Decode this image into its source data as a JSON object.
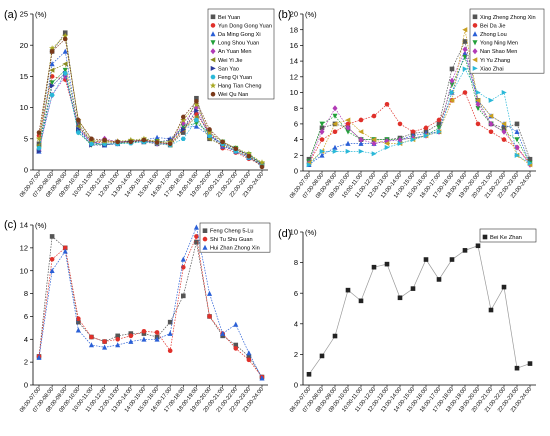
{
  "chart_data": [
    {
      "type": "line",
      "panel_label": "(a)",
      "ylabel": "(%)",
      "ylim": [
        0,
        25
      ],
      "yticks": [
        0,
        5,
        10,
        15,
        20,
        25
      ],
      "yunit": "%",
      "categories": [
        "06:00-07:00",
        "07:00-08:00",
        "08:00-09:00",
        "09:00-10:00",
        "10:00-11:00",
        "11:00-12:00",
        "12:00-13:00",
        "13:00-14:00",
        "14:00-15:00",
        "15:00-16:00",
        "16:00-17:00",
        "17:00-18:00",
        "18:00-19:00",
        "19:00-20:00",
        "20:00-21:00",
        "21:00-22:00",
        "22:00-23:00",
        "23:00-24:00"
      ],
      "legend_position": "top-right",
      "series": [
        {
          "name": "Bei Yuan",
          "color": "#555555",
          "marker": "square",
          "values": [
            4.2,
            19.0,
            22.0,
            7.5,
            4.5,
            4.0,
            4.3,
            4.5,
            4.5,
            4.2,
            4.0,
            6.0,
            11.5,
            5.0,
            4.0,
            3.0,
            2.0,
            1.0
          ]
        },
        {
          "name": "Yun Dong Gong Yuan",
          "color": "#e0302a",
          "marker": "circle",
          "values": [
            5.5,
            15.0,
            14.5,
            7.0,
            4.3,
            4.5,
            4.5,
            4.6,
            4.8,
            4.5,
            4.2,
            6.5,
            9.0,
            6.0,
            3.5,
            2.8,
            1.8,
            0.8
          ]
        },
        {
          "name": "Da Ming Gong Xi",
          "color": "#2a5fd6",
          "marker": "triangle-up",
          "values": [
            3.0,
            17.0,
            19.0,
            6.5,
            4.5,
            4.0,
            4.2,
            4.8,
            4.8,
            5.2,
            5.0,
            6.8,
            7.0,
            5.5,
            3.8,
            3.0,
            2.0,
            0.8
          ]
        },
        {
          "name": "Long Shou Yuan",
          "color": "#22a03a",
          "marker": "triangle-down",
          "values": [
            3.5,
            14.0,
            16.0,
            6.0,
            4.0,
            4.2,
            4.2,
            4.4,
            4.6,
            4.6,
            4.4,
            7.0,
            7.5,
            6.0,
            4.5,
            3.5,
            2.5,
            1.0
          ]
        },
        {
          "name": "An Yuan Men",
          "color": "#b23bb6",
          "marker": "diamond",
          "values": [
            3.2,
            12.0,
            15.0,
            7.0,
            4.2,
            5.0,
            4.5,
            4.6,
            4.8,
            4.2,
            4.3,
            7.5,
            10.0,
            6.0,
            4.0,
            3.0,
            2.0,
            0.8
          ]
        },
        {
          "name": "Wei Yi Jie",
          "color": "#8a8a20",
          "marker": "triangle-left",
          "values": [
            4.0,
            16.0,
            17.0,
            7.0,
            4.6,
            4.5,
            4.4,
            4.6,
            4.9,
            4.6,
            4.0,
            6.5,
            8.5,
            5.0,
            4.0,
            3.2,
            2.2,
            1.0
          ]
        },
        {
          "name": "San Yao",
          "color": "#2a3a9a",
          "marker": "triangle-right",
          "values": [
            3.0,
            13.5,
            15.5,
            6.5,
            4.0,
            4.0,
            4.5,
            4.6,
            4.5,
            4.5,
            4.8,
            6.5,
            9.5,
            5.5,
            4.2,
            3.4,
            2.4,
            1.0
          ]
        },
        {
          "name": "Feng Qi Yuan",
          "color": "#2ab8d8",
          "marker": "hexagon",
          "values": [
            3.5,
            12.0,
            15.5,
            6.0,
            4.2,
            4.2,
            4.2,
            4.3,
            4.5,
            4.3,
            4.0,
            5.0,
            8.0,
            5.5,
            4.2,
            3.0,
            2.0,
            0.8
          ]
        },
        {
          "name": "Hang Tian Cheng",
          "color": "#a8a822",
          "marker": "star",
          "values": [
            5.0,
            19.5,
            21.5,
            8.0,
            4.8,
            4.6,
            4.6,
            4.8,
            5.0,
            4.5,
            4.5,
            8.0,
            10.5,
            6.0,
            4.5,
            3.5,
            2.6,
            1.2
          ]
        },
        {
          "name": "Wei Qu Nan",
          "color": "#7a3a1a",
          "marker": "circle",
          "values": [
            6.0,
            19.0,
            21.0,
            8.0,
            5.0,
            4.8,
            4.5,
            4.5,
            4.8,
            4.4,
            4.2,
            8.5,
            11.0,
            6.5,
            4.5,
            3.4,
            2.2,
            0.5
          ]
        }
      ]
    },
    {
      "type": "line",
      "panel_label": "(b)",
      "ylabel": "(%)",
      "ylim": [
        0,
        20
      ],
      "yticks": [
        0,
        2,
        4,
        6,
        8,
        10,
        12,
        14,
        16,
        18,
        20
      ],
      "yunit": "%",
      "categories": [
        "06:00-07:00",
        "07:00-08:00",
        "08:00-09:00",
        "09:00-10:00",
        "10:00-11:00",
        "11:00-12:00",
        "12:00-13:00",
        "13:00-14:00",
        "14:00-15:00",
        "15:00-16:00",
        "16:00-17:00",
        "17:00-18:00",
        "18:00-19:00",
        "19:00-20:00",
        "20:00-21:00",
        "21:00-22:00",
        "22:00-23:00",
        "23:00-24:00"
      ],
      "legend_position": "top-right",
      "series": [
        {
          "name": "Xing Zheng Zhong Xin",
          "color": "#555555",
          "marker": "square",
          "values": [
            1.5,
            5.5,
            6.0,
            5.5,
            4.0,
            4.0,
            4.0,
            4.2,
            4.8,
            5.0,
            6.0,
            13.0,
            16.5,
            9.0,
            6.0,
            5.5,
            6.0,
            1.5
          ]
        },
        {
          "name": "Bei Da Jie",
          "color": "#e0302a",
          "marker": "circle",
          "values": [
            1.0,
            4.0,
            5.0,
            6.0,
            6.5,
            7.0,
            8.5,
            6.0,
            5.0,
            5.5,
            6.5,
            9.0,
            10.0,
            6.0,
            5.0,
            4.0,
            3.0,
            1.0
          ]
        },
        {
          "name": "Zhong Lou",
          "color": "#2a5fd6",
          "marker": "triangle-up",
          "values": [
            0.8,
            2.0,
            3.0,
            3.5,
            3.5,
            3.5,
            3.8,
            4.0,
            4.5,
            4.8,
            5.0,
            10.0,
            15.0,
            9.0,
            7.0,
            6.0,
            5.0,
            1.0
          ]
        },
        {
          "name": "Yong Ning Men",
          "color": "#22a03a",
          "marker": "triangle-down",
          "values": [
            1.2,
            6.0,
            7.0,
            5.0,
            4.0,
            4.0,
            4.0,
            4.0,
            4.2,
            4.5,
            5.5,
            11.0,
            14.5,
            8.0,
            6.0,
            5.0,
            4.0,
            1.0
          ]
        },
        {
          "name": "Nan Shao Men",
          "color": "#b23bb6",
          "marker": "diamond",
          "values": [
            1.0,
            5.0,
            8.0,
            5.5,
            4.0,
            3.5,
            3.8,
            4.0,
            4.2,
            4.5,
            5.0,
            11.5,
            15.5,
            8.5,
            6.0,
            5.0,
            3.0,
            0.8
          ]
        },
        {
          "name": "Yi Yu Zhang",
          "color": "#c8a020",
          "marker": "triangle-left",
          "values": [
            1.0,
            2.5,
            6.0,
            6.5,
            5.0,
            4.0,
            3.5,
            3.5,
            4.0,
            4.5,
            5.0,
            9.0,
            18.0,
            9.0,
            7.0,
            6.0,
            2.0,
            0.8
          ]
        },
        {
          "name": "Xiao Zhai",
          "color": "#2ab8d8",
          "marker": "triangle-right",
          "values": [
            0.8,
            2.5,
            2.5,
            2.5,
            2.5,
            2.2,
            3.0,
            3.5,
            4.0,
            4.5,
            5.0,
            10.0,
            13.0,
            10.0,
            9.0,
            10.0,
            2.0,
            1.0
          ]
        }
      ]
    },
    {
      "type": "line",
      "panel_label": "(c)",
      "ylabel": "(%)",
      "ylim": [
        0,
        14
      ],
      "yticks": [
        0,
        2,
        4,
        6,
        8,
        10,
        12,
        14
      ],
      "yunit": "%",
      "categories": [
        "06:00-07:00",
        "07:00-08:00",
        "08:00-09:00",
        "09:00-10:00",
        "10:00-11:00",
        "11:00-12:00",
        "12:00-13:00",
        "13:00-14:00",
        "14:00-15:00",
        "15:00-16:00",
        "16:00-17:00",
        "17:00-18:00",
        "18:00-19:00",
        "19:00-20:00",
        "20:00-21:00",
        "21:00-22:00",
        "22:00-23:00",
        "23:00-24:00"
      ],
      "legend_position": "top-right",
      "series": [
        {
          "name": "Feng Cheng 5-Lu",
          "color": "#555555",
          "marker": "square",
          "values": [
            2.5,
            13.0,
            12.0,
            5.5,
            4.2,
            3.8,
            4.3,
            4.5,
            4.5,
            4.2,
            5.5,
            7.8,
            12.5,
            6.0,
            4.3,
            3.5,
            2.5,
            0.7
          ]
        },
        {
          "name": "Shi Tu Shu Guan",
          "color": "#e0302a",
          "marker": "circle",
          "values": [
            2.5,
            11.0,
            12.0,
            5.8,
            4.2,
            3.8,
            4.0,
            4.3,
            4.7,
            4.6,
            3.0,
            10.3,
            13.0,
            6.0,
            4.5,
            3.2,
            2.2,
            0.7
          ]
        },
        {
          "name": "Hui Zhan Zhong Xin",
          "color": "#2a5fd6",
          "marker": "triangle-up",
          "values": [
            2.4,
            10.0,
            11.7,
            4.8,
            3.5,
            3.3,
            3.5,
            3.8,
            4.0,
            4.0,
            4.5,
            11.0,
            13.8,
            8.0,
            4.5,
            5.3,
            2.8,
            0.6
          ]
        }
      ]
    },
    {
      "type": "line",
      "panel_label": "(d)",
      "ylabel": "(%)",
      "ylim": [
        0,
        10
      ],
      "yticks": [
        0,
        2,
        4,
        6,
        8,
        10
      ],
      "yunit": "%",
      "categories": [
        "06:00-07:00",
        "07:00-08:00",
        "08:00-09:00",
        "09:00-10:00",
        "10:00-11:00",
        "11:00-12:00",
        "12:00-13:00",
        "13:00-14:00",
        "14:00-15:00",
        "15:00-16:00",
        "16:00-17:00",
        "17:00-18:00",
        "18:00-19:00",
        "19:00-20:00",
        "20:00-21:00",
        "21:00-22:00",
        "22:00-23:00",
        "23:00-24:00"
      ],
      "legend_position": "top-right",
      "series": [
        {
          "name": "Bei Ke Zhan",
          "color": "#222222",
          "marker": "square",
          "values": [
            0.7,
            1.9,
            3.2,
            6.2,
            5.5,
            7.7,
            7.9,
            5.7,
            6.3,
            8.2,
            6.9,
            8.2,
            8.8,
            9.1,
            4.9,
            6.4,
            1.1,
            1.4
          ]
        }
      ]
    }
  ]
}
